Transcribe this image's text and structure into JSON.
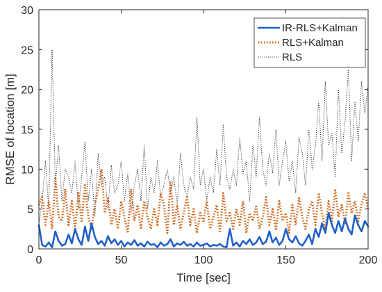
{
  "chart_data": {
    "type": "line",
    "xlabel": "Time [sec]",
    "ylabel": "RMSE of location [m]",
    "xlim": [
      0,
      200
    ],
    "ylim": [
      0,
      30
    ],
    "xticks": [
      0,
      50,
      100,
      150,
      200
    ],
    "yticks": [
      0,
      5,
      10,
      15,
      20,
      25,
      30
    ],
    "grid": false,
    "legend_position": "top-right",
    "x": [
      0,
      2,
      4,
      6,
      8,
      10,
      12,
      14,
      16,
      18,
      20,
      22,
      24,
      26,
      28,
      30,
      32,
      34,
      36,
      38,
      40,
      42,
      44,
      46,
      48,
      50,
      52,
      54,
      56,
      58,
      60,
      62,
      64,
      66,
      68,
      70,
      72,
      74,
      76,
      78,
      80,
      82,
      84,
      86,
      88,
      90,
      92,
      94,
      96,
      98,
      100,
      102,
      104,
      106,
      108,
      110,
      112,
      114,
      116,
      118,
      120,
      122,
      124,
      126,
      128,
      130,
      132,
      134,
      136,
      138,
      140,
      142,
      144,
      146,
      148,
      150,
      152,
      154,
      156,
      158,
      160,
      162,
      164,
      166,
      168,
      170,
      172,
      174,
      176,
      178,
      180,
      182,
      184,
      186,
      188,
      190,
      192,
      194,
      196,
      198,
      200
    ],
    "series": [
      {
        "name": "IR-RLS+Kalman",
        "color": "#1f5fc8",
        "style": "solid",
        "values": [
          3.0,
          0.5,
          0.3,
          0.8,
          0.2,
          2.2,
          1.0,
          0.4,
          0.6,
          1.8,
          0.7,
          2.5,
          1.2,
          0.5,
          2.8,
          1.0,
          3.2,
          1.5,
          0.6,
          1.0,
          0.4,
          1.6,
          0.7,
          1.2,
          0.5,
          1.0,
          0.3,
          0.8,
          0.5,
          1.1,
          0.4,
          0.7,
          0.3,
          0.9,
          0.5,
          0.6,
          0.2,
          0.8,
          0.4,
          0.6,
          1.2,
          0.3,
          0.7,
          0.5,
          0.9,
          0.4,
          0.6,
          0.3,
          0.8,
          0.4,
          0.5,
          0.7,
          0.3,
          0.5,
          0.4,
          0.6,
          0.3,
          0.2,
          2.5,
          0.4,
          0.8,
          0.3,
          1.0,
          0.6,
          1.2,
          0.5,
          0.8,
          1.5,
          0.6,
          0.9,
          2.2,
          0.8,
          1.4,
          0.5,
          1.0,
          2.5,
          1.2,
          0.8,
          1.6,
          0.7,
          0.4,
          1.0,
          1.8,
          0.6,
          2.5,
          1.5,
          3.2,
          2.0,
          4.5,
          3.0,
          2.0,
          3.5,
          2.2,
          3.8,
          2.5,
          1.8,
          4.2,
          3.0,
          2.2,
          3.5,
          2.8
        ]
      },
      {
        "name": "RLS+Kalman",
        "color": "#d2691e",
        "style": "dotted",
        "values": [
          5.5,
          6.5,
          3.0,
          6.0,
          2.5,
          9.0,
          4.0,
          3.5,
          7.5,
          3.0,
          6.0,
          2.5,
          7.0,
          3.5,
          8.0,
          4.0,
          2.5,
          5.5,
          7.5,
          10.0,
          4.5,
          6.5,
          3.0,
          5.0,
          2.5,
          6.0,
          4.0,
          2.0,
          7.5,
          3.5,
          5.5,
          2.5,
          6.0,
          4.0,
          2.5,
          5.0,
          3.0,
          7.0,
          5.5,
          2.0,
          8.5,
          3.0,
          5.5,
          2.5,
          4.5,
          6.5,
          3.0,
          5.0,
          2.0,
          4.5,
          3.5,
          6.0,
          2.5,
          4.0,
          5.5,
          2.0,
          7.0,
          3.5,
          4.5,
          2.5,
          5.0,
          3.0,
          6.0,
          2.0,
          4.5,
          3.5,
          5.5,
          2.5,
          4.0,
          6.5,
          3.0,
          5.0,
          2.5,
          6.0,
          3.5,
          4.5,
          2.0,
          5.5,
          3.0,
          6.5,
          4.0,
          2.5,
          5.0,
          6.0,
          3.0,
          7.0,
          4.5,
          2.5,
          6.0,
          3.5,
          7.5,
          4.0,
          5.5,
          3.0,
          7.0,
          4.5,
          6.0,
          3.5,
          5.5,
          7.0,
          5.0
        ]
      },
      {
        "name": "RLS",
        "color": "#1a1a1a",
        "style": "dotted-thin",
        "values": [
          3.0,
          6.0,
          11.0,
          5.0,
          25.0,
          8.0,
          13.0,
          6.0,
          10.0,
          9.0,
          7.0,
          11.0,
          5.0,
          9.0,
          13.5,
          6.0,
          10.0,
          4.0,
          12.0,
          8.0,
          9.0,
          5.0,
          10.5,
          7.0,
          8.0,
          11.0,
          6.0,
          9.5,
          4.5,
          8.0,
          10.0,
          6.0,
          13.0,
          5.0,
          9.0,
          7.0,
          11.0,
          6.5,
          8.0,
          10.0,
          7.0,
          9.0,
          5.5,
          12.0,
          8.0,
          6.5,
          9.0,
          7.5,
          16.5,
          8.0,
          10.0,
          6.0,
          9.0,
          7.0,
          12.5,
          8.0,
          15.5,
          9.0,
          7.5,
          10.0,
          8.0,
          14.0,
          9.5,
          11.0,
          6.0,
          13.0,
          9.0,
          16.5,
          10.0,
          8.0,
          12.0,
          9.5,
          15.0,
          8.0,
          11.0,
          13.5,
          8.5,
          11.0,
          7.0,
          14.0,
          12.0,
          8.0,
          15.0,
          10.0,
          13.0,
          18.5,
          11.0,
          21.0,
          13.0,
          14.5,
          9.0,
          20.0,
          12.0,
          16.0,
          22.5,
          11.0,
          18.5,
          13.5,
          21.0,
          17.0,
          20.5
        ]
      }
    ]
  }
}
